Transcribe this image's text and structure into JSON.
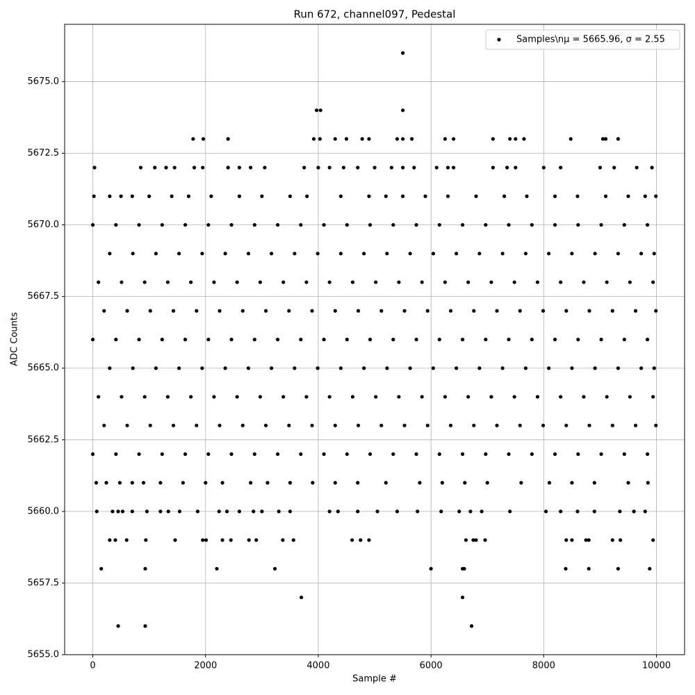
{
  "chart_data": {
    "type": "scatter",
    "title": "Run 672, channel097, Pedestal",
    "x_label": "Sample #",
    "y_label": "ADC Counts",
    "xlim": [
      -500,
      10499
    ],
    "ylim": [
      5655,
      5677
    ],
    "xticks": [
      0,
      2000,
      4000,
      6000,
      8000,
      10000
    ],
    "yticks": [
      {
        "value": 5655,
        "label": "5655.0"
      },
      {
        "value": 5657.5,
        "label": "5657.5"
      },
      {
        "value": 5660,
        "label": "5660.0"
      },
      {
        "value": 5662.5,
        "label": "5662.5"
      },
      {
        "value": 5665,
        "label": "5665.0"
      },
      {
        "value": 5667.5,
        "label": "5667.5"
      },
      {
        "value": 5670,
        "label": "5670.0"
      },
      {
        "value": 5672.5,
        "label": "5672.5"
      },
      {
        "value": 5675,
        "label": "5675.0"
      }
    ],
    "grid": true,
    "legend": "upper right",
    "series": [
      {
        "name": "Samples\\nμ = 5665.96, σ = 2.55",
        "color": "#000000",
        "x": [
          450,
          930,
          6720,
          3700,
          6560,
          150,
          930,
          2200,
          3230,
          6000,
          6560,
          6590,
          8390,
          8800,
          9320,
          9880,
          300,
          400,
          600,
          940,
          1460,
          1950,
          2010,
          2300,
          2450,
          2770,
          2900,
          3370,
          3560,
          4600,
          4750,
          4900,
          6620,
          6750,
          6800,
          6960,
          8400,
          8500,
          8750,
          8800,
          9220,
          9360,
          9940,
          70,
          350,
          450,
          530,
          700,
          960,
          1200,
          1340,
          1540,
          1860,
          2240,
          2380,
          2600,
          2850,
          3000,
          3300,
          3500,
          4200,
          4350,
          4700,
          5050,
          5400,
          5760,
          6180,
          6500,
          6700,
          6900,
          7400,
          8040,
          8300,
          8600,
          8900,
          9350,
          9600,
          9800,
          60,
          240,
          480,
          700,
          900,
          1200,
          1600,
          2000,
          2300,
          2800,
          3100,
          3500,
          3900,
          4300,
          4700,
          5200,
          5800,
          6200,
          6600,
          7000,
          7600,
          8100,
          8500,
          8900,
          9500,
          9850,
          0,
          410,
          820,
          1230,
          1640,
          2050,
          2460,
          2870,
          3280,
          3690,
          4100,
          4510,
          4920,
          5330,
          5740,
          6150,
          6560,
          6970,
          7380,
          7790,
          8200,
          8610,
          9020,
          9430,
          9840,
          200,
          610,
          1020,
          1430,
          1840,
          2250,
          2660,
          3070,
          3480,
          3890,
          4300,
          4710,
          5120,
          5530,
          5940,
          6350,
          6760,
          7170,
          7580,
          7990,
          8400,
          8810,
          9220,
          9630,
          9990,
          100,
          510,
          920,
          1330,
          1740,
          2150,
          2560,
          2970,
          3380,
          3790,
          4200,
          4610,
          5020,
          5430,
          5840,
          6250,
          6660,
          7070,
          7480,
          7890,
          8300,
          8710,
          9120,
          9530,
          9940,
          300,
          710,
          1120,
          1530,
          1940,
          2350,
          2760,
          3170,
          3580,
          3990,
          4400,
          4810,
          5220,
          5630,
          6040,
          6450,
          6860,
          7270,
          7680,
          8090,
          8500,
          8910,
          9320,
          9730,
          9960,
          0,
          410,
          820,
          1230,
          1640,
          2050,
          2460,
          2870,
          3280,
          3690,
          4100,
          4510,
          4920,
          5330,
          5740,
          6150,
          6560,
          6970,
          7380,
          7790,
          8200,
          8610,
          9020,
          9430,
          9840,
          200,
          610,
          1020,
          1430,
          1840,
          2250,
          2660,
          3070,
          3480,
          3890,
          4300,
          4710,
          5120,
          5530,
          5940,
          6350,
          6760,
          7170,
          7580,
          7990,
          8400,
          8810,
          9220,
          9630,
          9990,
          100,
          510,
          920,
          1330,
          1740,
          2150,
          2560,
          2970,
          3380,
          3790,
          4200,
          4610,
          5020,
          5430,
          5840,
          6250,
          6660,
          7070,
          7480,
          7890,
          8300,
          8710,
          9120,
          9530,
          9940,
          300,
          710,
          1120,
          1530,
          1940,
          2350,
          2760,
          3170,
          3580,
          3990,
          4400,
          4810,
          5220,
          5630,
          6040,
          6450,
          6860,
          7270,
          7680,
          8090,
          8500,
          8910,
          9320,
          9730,
          9960,
          0,
          410,
          820,
          1230,
          1640,
          2050,
          2460,
          2870,
          3280,
          3690,
          4100,
          4510,
          4920,
          5330,
          5740,
          6150,
          6560,
          6970,
          7380,
          7790,
          8200,
          8610,
          9020,
          9430,
          9840,
          20,
          300,
          500,
          700,
          1000,
          1400,
          1700,
          2100,
          2600,
          3000,
          3500,
          3800,
          4400,
          4900,
          5200,
          5500,
          5900,
          6300,
          6800,
          7300,
          7700,
          8200,
          8600,
          9100,
          9500,
          9800,
          9990,
          30,
          850,
          1100,
          1300,
          1450,
          1800,
          1950,
          2400,
          2600,
          2800,
          3050,
          3750,
          4000,
          4200,
          4450,
          4700,
          5000,
          5300,
          5500,
          5700,
          6100,
          6300,
          6400,
          7100,
          7350,
          7500,
          8000,
          8300,
          9000,
          9250,
          9650,
          9920,
          1780,
          1960,
          2400,
          3920,
          4030,
          4300,
          4500,
          4780,
          4900,
          5400,
          5500,
          5660,
          6250,
          6400,
          7100,
          7400,
          7500,
          7650,
          8480,
          9050,
          9100,
          9320,
          3970,
          4040,
          5500,
          5500
        ],
        "values": [
          5656,
          5656,
          5656,
          5657,
          5657,
          5658,
          5658,
          5658,
          5658,
          5658,
          5658,
          5658,
          5658,
          5658,
          5658,
          5658,
          5659,
          5659,
          5659,
          5659,
          5659,
          5659,
          5659,
          5659,
          5659,
          5659,
          5659,
          5659,
          5659,
          5659,
          5659,
          5659,
          5659,
          5659,
          5659,
          5659,
          5659,
          5659,
          5659,
          5659,
          5659,
          5659,
          5659,
          5660,
          5660,
          5660,
          5660,
          5660,
          5660,
          5660,
          5660,
          5660,
          5660,
          5660,
          5660,
          5660,
          5660,
          5660,
          5660,
          5660,
          5660,
          5660,
          5660,
          5660,
          5660,
          5660,
          5660,
          5660,
          5660,
          5660,
          5660,
          5660,
          5660,
          5660,
          5660,
          5660,
          5660,
          5660,
          5661,
          5661,
          5661,
          5661,
          5661,
          5661,
          5661,
          5661,
          5661,
          5661,
          5661,
          5661,
          5661,
          5661,
          5661,
          5661,
          5661,
          5661,
          5661,
          5661,
          5661,
          5661,
          5661,
          5661,
          5661,
          5661,
          5662,
          5662,
          5662,
          5662,
          5662,
          5662,
          5662,
          5662,
          5662,
          5662,
          5662,
          5662,
          5662,
          5662,
          5662,
          5662,
          5662,
          5662,
          5662,
          5662,
          5662,
          5662,
          5662,
          5662,
          5662,
          5663,
          5663,
          5663,
          5663,
          5663,
          5663,
          5663,
          5663,
          5663,
          5663,
          5663,
          5663,
          5663,
          5663,
          5663,
          5663,
          5663,
          5663,
          5663,
          5663,
          5663,
          5663,
          5663,
          5663,
          5663,
          5664,
          5664,
          5664,
          5664,
          5664,
          5664,
          5664,
          5664,
          5664,
          5664,
          5664,
          5664,
          5664,
          5664,
          5664,
          5664,
          5664,
          5664,
          5664,
          5664,
          5664,
          5664,
          5664,
          5664,
          5664,
          5665,
          5665,
          5665,
          5665,
          5665,
          5665,
          5665,
          5665,
          5665,
          5665,
          5665,
          5665,
          5665,
          5665,
          5665,
          5665,
          5665,
          5665,
          5665,
          5665,
          5665,
          5665,
          5665,
          5665,
          5665,
          5666,
          5666,
          5666,
          5666,
          5666,
          5666,
          5666,
          5666,
          5666,
          5666,
          5666,
          5666,
          5666,
          5666,
          5666,
          5666,
          5666,
          5666,
          5666,
          5666,
          5666,
          5666,
          5666,
          5666,
          5666,
          5667,
          5667,
          5667,
          5667,
          5667,
          5667,
          5667,
          5667,
          5667,
          5667,
          5667,
          5667,
          5667,
          5667,
          5667,
          5667,
          5667,
          5667,
          5667,
          5667,
          5667,
          5667,
          5667,
          5667,
          5667,
          5668,
          5668,
          5668,
          5668,
          5668,
          5668,
          5668,
          5668,
          5668,
          5668,
          5668,
          5668,
          5668,
          5668,
          5668,
          5668,
          5668,
          5668,
          5668,
          5668,
          5668,
          5668,
          5668,
          5668,
          5668,
          5669,
          5669,
          5669,
          5669,
          5669,
          5669,
          5669,
          5669,
          5669,
          5669,
          5669,
          5669,
          5669,
          5669,
          5669,
          5669,
          5669,
          5669,
          5669,
          5669,
          5669,
          5669,
          5669,
          5669,
          5669,
          5670,
          5670,
          5670,
          5670,
          5670,
          5670,
          5670,
          5670,
          5670,
          5670,
          5670,
          5670,
          5670,
          5670,
          5670,
          5670,
          5670,
          5670,
          5670,
          5670,
          5670,
          5670,
          5670,
          5670,
          5670,
          5671,
          5671,
          5671,
          5671,
          5671,
          5671,
          5671,
          5671,
          5671,
          5671,
          5671,
          5671,
          5671,
          5671,
          5671,
          5671,
          5671,
          5671,
          5671,
          5671,
          5671,
          5671,
          5671,
          5671,
          5671,
          5671,
          5671,
          5672,
          5672,
          5672,
          5672,
          5672,
          5672,
          5672,
          5672,
          5672,
          5672,
          5672,
          5672,
          5672,
          5672,
          5672,
          5672,
          5672,
          5672,
          5672,
          5672,
          5672,
          5672,
          5672,
          5672,
          5672,
          5672,
          5672,
          5672,
          5672,
          5672,
          5672,
          5672,
          5673,
          5673,
          5673,
          5673,
          5673,
          5673,
          5673,
          5673,
          5673,
          5673,
          5673,
          5673,
          5673,
          5673,
          5673,
          5673,
          5673,
          5673,
          5673,
          5673,
          5673,
          5673,
          5674,
          5674,
          5674,
          5676
        ]
      }
    ]
  }
}
